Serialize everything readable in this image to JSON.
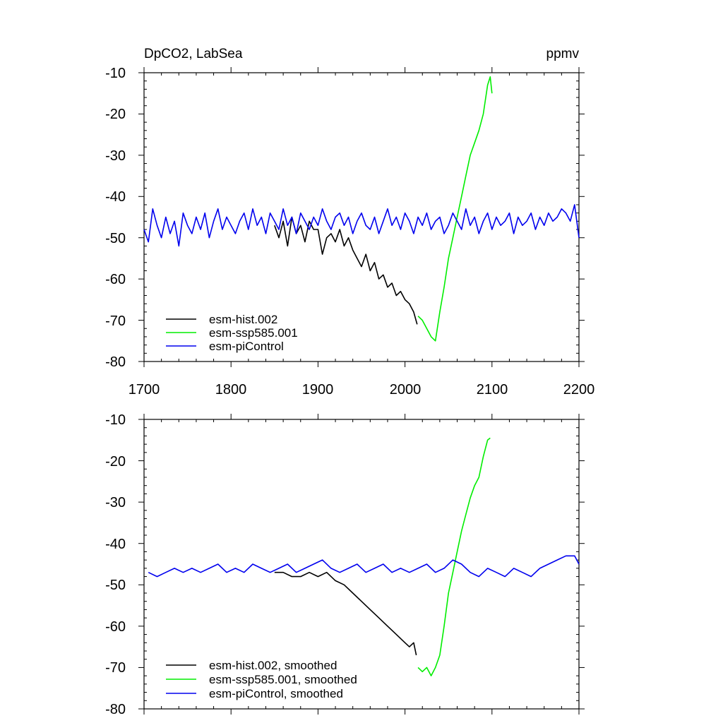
{
  "chart_data": [
    {
      "type": "line",
      "title": "DpCO2, LabSea",
      "units": "ppmv",
      "xlim": [
        1700,
        2200
      ],
      "ylim": [
        -80,
        -10
      ],
      "xticks": [
        "1700",
        "1800",
        "1900",
        "2000",
        "2100",
        "2200"
      ],
      "yticks": [
        "-10",
        "-20",
        "-30",
        "-40",
        "-50",
        "-60",
        "-70",
        "-80"
      ],
      "legend_position": "bottom-left",
      "series": [
        {
          "name": "esm-hist.002",
          "color": "#000000",
          "x": [
            1850,
            1855,
            1860,
            1865,
            1870,
            1875,
            1880,
            1885,
            1890,
            1895,
            1900,
            1905,
            1910,
            1915,
            1920,
            1925,
            1930,
            1935,
            1940,
            1945,
            1950,
            1955,
            1960,
            1965,
            1970,
            1975,
            1980,
            1985,
            1990,
            1995,
            2000,
            2005,
            2010,
            2014
          ],
          "y": [
            -47,
            -50,
            -46,
            -52,
            -45,
            -49,
            -47,
            -51,
            -46,
            -48,
            -48,
            -54,
            -50,
            -49,
            -51,
            -48,
            -52,
            -50,
            -53,
            -55,
            -57,
            -54,
            -58,
            -56,
            -60,
            -59,
            -62,
            -61,
            -64,
            -63,
            -65,
            -66,
            -68,
            -71
          ]
        },
        {
          "name": "esm-ssp585.001",
          "color": "#00ee00",
          "x": [
            2015,
            2020,
            2025,
            2030,
            2035,
            2040,
            2045,
            2050,
            2055,
            2060,
            2065,
            2070,
            2075,
            2080,
            2085,
            2090,
            2095,
            2098,
            2100
          ],
          "y": [
            -69,
            -70,
            -72,
            -74,
            -75,
            -68,
            -62,
            -55,
            -50,
            -45,
            -40,
            -35,
            -30,
            -27,
            -24,
            -20,
            -13,
            -11,
            -15
          ]
        },
        {
          "name": "esm-piControl",
          "color": "#0000ee",
          "x": [
            1700,
            1705,
            1710,
            1715,
            1720,
            1725,
            1730,
            1735,
            1740,
            1745,
            1750,
            1755,
            1760,
            1765,
            1770,
            1775,
            1780,
            1785,
            1790,
            1795,
            1800,
            1805,
            1810,
            1815,
            1820,
            1825,
            1830,
            1835,
            1840,
            1845,
            1850,
            1855,
            1860,
            1865,
            1870,
            1875,
            1880,
            1885,
            1890,
            1895,
            1900,
            1905,
            1910,
            1915,
            1920,
            1925,
            1930,
            1935,
            1940,
            1945,
            1950,
            1955,
            1960,
            1965,
            1970,
            1975,
            1980,
            1985,
            1990,
            1995,
            2000,
            2005,
            2010,
            2015,
            2020,
            2025,
            2030,
            2035,
            2040,
            2045,
            2050,
            2055,
            2060,
            2065,
            2070,
            2075,
            2080,
            2085,
            2090,
            2095,
            2100,
            2105,
            2110,
            2115,
            2120,
            2125,
            2130,
            2135,
            2140,
            2145,
            2150,
            2155,
            2160,
            2165,
            2170,
            2175,
            2180,
            2185,
            2190,
            2195,
            2200
          ],
          "y": [
            -48,
            -51,
            -43,
            -47,
            -50,
            -45,
            -49,
            -46,
            -52,
            -44,
            -47,
            -49,
            -45,
            -48,
            -44,
            -50,
            -46,
            -43,
            -48,
            -45,
            -47,
            -49,
            -46,
            -44,
            -48,
            -43,
            -47,
            -45,
            -49,
            -44,
            -46,
            -48,
            -43,
            -47,
            -45,
            -49,
            -44,
            -46,
            -48,
            -45,
            -47,
            -43,
            -46,
            -48,
            -45,
            -44,
            -47,
            -45,
            -49,
            -46,
            -44,
            -47,
            -48,
            -45,
            -49,
            -46,
            -43,
            -47,
            -45,
            -48,
            -44,
            -46,
            -49,
            -45,
            -47,
            -44,
            -48,
            -46,
            -45,
            -49,
            -47,
            -44,
            -46,
            -48,
            -43,
            -47,
            -45,
            -49,
            -46,
            -44,
            -48,
            -45,
            -47,
            -46,
            -44,
            -49,
            -45,
            -47,
            -46,
            -44,
            -48,
            -45,
            -47,
            -44,
            -46,
            -45,
            -43,
            -44,
            -46,
            -42,
            -50
          ]
        }
      ]
    },
    {
      "type": "line",
      "xlim": [
        1700,
        2200
      ],
      "ylim": [
        -80,
        -10
      ],
      "yticks": [
        "-10",
        "-20",
        "-30",
        "-40",
        "-50",
        "-60",
        "-70",
        "-80"
      ],
      "legend_position": "bottom-left",
      "series": [
        {
          "name": "esm-hist.002, smoothed",
          "color": "#000000",
          "x": [
            1850,
            1860,
            1870,
            1880,
            1890,
            1900,
            1910,
            1920,
            1930,
            1940,
            1950,
            1960,
            1970,
            1980,
            1990,
            2000,
            2005,
            2010,
            2013
          ],
          "y": [
            -47,
            -47,
            -48,
            -48,
            -47,
            -48,
            -47,
            -49,
            -50,
            -52,
            -54,
            -56,
            -58,
            -60,
            -62,
            -64,
            -65,
            -64,
            -67
          ]
        },
        {
          "name": "esm-ssp585.001, smoothed",
          "color": "#00ee00",
          "x": [
            2015,
            2020,
            2025,
            2030,
            2035,
            2040,
            2045,
            2050,
            2055,
            2060,
            2065,
            2070,
            2075,
            2080,
            2085,
            2090,
            2095,
            2098
          ],
          "y": [
            -70,
            -71,
            -70,
            -72,
            -70,
            -67,
            -60,
            -52,
            -47,
            -42,
            -37,
            -33,
            -29,
            -26,
            -24,
            -19,
            -15,
            -14.5
          ]
        },
        {
          "name": "esm-piControl, smoothed",
          "color": "#0000ee",
          "x": [
            1705,
            1715,
            1725,
            1735,
            1745,
            1755,
            1765,
            1775,
            1785,
            1795,
            1805,
            1815,
            1825,
            1835,
            1845,
            1855,
            1865,
            1875,
            1885,
            1895,
            1905,
            1915,
            1925,
            1935,
            1945,
            1955,
            1965,
            1975,
            1985,
            1995,
            2005,
            2015,
            2025,
            2035,
            2045,
            2055,
            2065,
            2075,
            2085,
            2095,
            2105,
            2115,
            2125,
            2135,
            2145,
            2155,
            2165,
            2175,
            2185,
            2195,
            2200
          ],
          "y": [
            -47,
            -48,
            -47,
            -46,
            -47,
            -46,
            -47,
            -46,
            -45,
            -47,
            -46,
            -47,
            -45,
            -46,
            -47,
            -46,
            -45,
            -47,
            -46,
            -45,
            -44,
            -46,
            -47,
            -46,
            -45,
            -47,
            -46,
            -45,
            -47,
            -46,
            -47,
            -46,
            -45,
            -47,
            -46,
            -44,
            -45,
            -47,
            -48,
            -46,
            -47,
            -48,
            -46,
            -47,
            -48,
            -46,
            -45,
            -44,
            -43,
            -43,
            -45
          ]
        }
      ]
    }
  ]
}
